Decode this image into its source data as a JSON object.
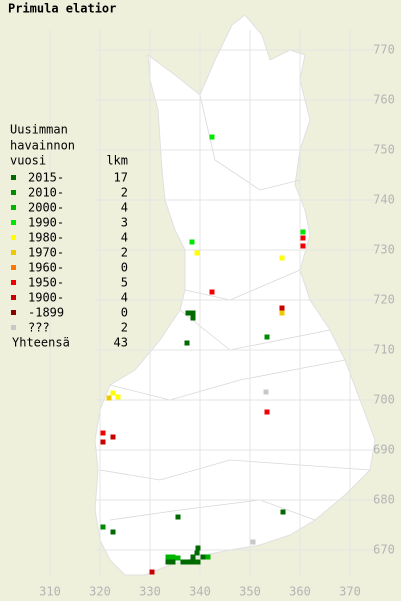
{
  "title": "Primula elatior",
  "legend": {
    "header": [
      "Uusimman",
      "havainnon",
      "vuosi"
    ],
    "count_header": "lkm",
    "items": [
      {
        "label": "2015-",
        "count": 17,
        "color": "#006a00",
        "points": [
          [
            337.6,
            717.4
          ],
          [
            338.6,
            717.4
          ],
          [
            338.6,
            716.4
          ],
          [
            337.4,
            711.4
          ],
          [
            356.6,
            677.6
          ],
          [
            335.6,
            676.6
          ],
          [
            322.6,
            673.6
          ],
          [
            339.4,
            669.4
          ],
          [
            333.6,
            667.6
          ],
          [
            336.6,
            667.6
          ],
          [
            337.6,
            667.6
          ],
          [
            338.6,
            668.6
          ],
          [
            338.6,
            667.6
          ],
          [
            339.6,
            667.6
          ],
          [
            340.6,
            668.6
          ],
          [
            339.6,
            670.4
          ],
          [
            334.6,
            667.6
          ]
        ]
      },
      {
        "label": "2010-",
        "count": 2,
        "color": "#008c00",
        "points": [
          [
            353.4,
            712.6
          ],
          [
            320.6,
            674.6
          ]
        ]
      },
      {
        "label": "2000-",
        "count": 4,
        "color": "#00b400",
        "points": [
          [
            333.6,
            668.6
          ],
          [
            334.6,
            668.6
          ],
          [
            335.6,
            668.4
          ],
          [
            341.6,
            668.6
          ]
        ]
      },
      {
        "label": "1990-",
        "count": 3,
        "color": "#00e600",
        "points": [
          [
            342.4,
            752.6
          ],
          [
            338.4,
            731.6
          ],
          [
            360.6,
            733.6
          ]
        ]
      },
      {
        "label": "1980-",
        "count": 4,
        "color": "#ffff00",
        "points": [
          [
            356.4,
            728.4
          ],
          [
            322.6,
            701.4
          ],
          [
            323.6,
            700.6
          ],
          [
            339.4,
            729.4
          ]
        ]
      },
      {
        "label": "1970-",
        "count": 2,
        "color": "#f0c800",
        "points": [
          [
            356.4,
            717.4
          ],
          [
            321.8,
            700.4
          ]
        ]
      },
      {
        "label": "1960-",
        "count": 0,
        "color": "#ff7800",
        "points": []
      },
      {
        "label": "1950-",
        "count": 5,
        "color": "#f00000",
        "points": [
          [
            342.4,
            721.6
          ],
          [
            360.6,
            732.4
          ],
          [
            360.6,
            730.8
          ],
          [
            353.4,
            697.6
          ],
          [
            320.6,
            693.4
          ]
        ]
      },
      {
        "label": "1900-",
        "count": 4,
        "color": "#c80000",
        "points": [
          [
            356.4,
            718.4
          ],
          [
            320.6,
            691.6
          ],
          [
            322.6,
            692.6
          ],
          [
            330.4,
            665.6
          ]
        ]
      },
      {
        "label": "-1899",
        "count": 0,
        "color": "#8c0000",
        "points": []
      },
      {
        "label": "???",
        "count": 2,
        "color": "#c8c8c8",
        "points": [
          [
            353.2,
            701.6
          ],
          [
            350.6,
            671.6
          ]
        ]
      }
    ],
    "total_label": "Yhteensä",
    "total": 43
  },
  "map": {
    "xlim": [
      300,
      380.2
    ],
    "ylim": [
      659.8,
      780
    ],
    "xticks": [
      310,
      320,
      330,
      340,
      350,
      360,
      370
    ],
    "yticks": [
      670,
      680,
      690,
      700,
      710,
      720,
      730,
      740,
      750,
      760,
      770
    ]
  }
}
